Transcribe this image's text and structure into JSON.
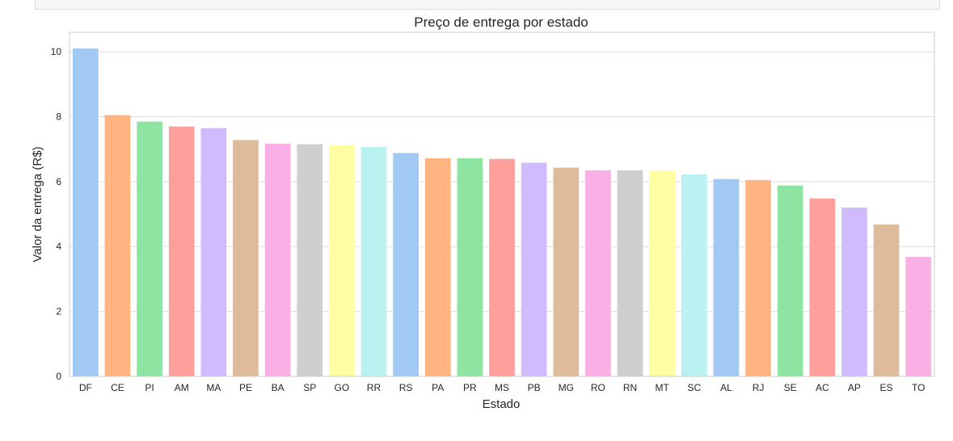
{
  "chart_data": {
    "type": "bar",
    "title": "Preço de entrega por estado",
    "xlabel": "Estado",
    "ylabel": "Valor da entrega (R$)",
    "ylim": [
      0,
      10.6
    ],
    "yticks": [
      0,
      2,
      4,
      6,
      8,
      10
    ],
    "grid": true,
    "categories": [
      "DF",
      "CE",
      "PI",
      "AM",
      "MA",
      "PE",
      "BA",
      "SP",
      "GO",
      "RR",
      "RS",
      "PA",
      "PR",
      "MS",
      "PB",
      "MG",
      "RO",
      "RN",
      "MT",
      "SC",
      "AL",
      "RJ",
      "SE",
      "AC",
      "AP",
      "ES",
      "TO"
    ],
    "values": [
      10.1,
      8.05,
      7.85,
      7.7,
      7.65,
      7.28,
      7.17,
      7.15,
      7.12,
      7.07,
      6.88,
      6.72,
      6.72,
      6.7,
      6.58,
      6.43,
      6.35,
      6.35,
      6.33,
      6.22,
      6.08,
      6.05,
      5.88,
      5.48,
      5.2,
      4.68,
      3.68
    ],
    "colors": [
      "#a1c9f4",
      "#ffb482",
      "#8de5a1",
      "#ff9f9b",
      "#d0bbff",
      "#debb9b",
      "#fab0e4",
      "#cfcfcf",
      "#fffea3",
      "#b9f2f0"
    ]
  }
}
